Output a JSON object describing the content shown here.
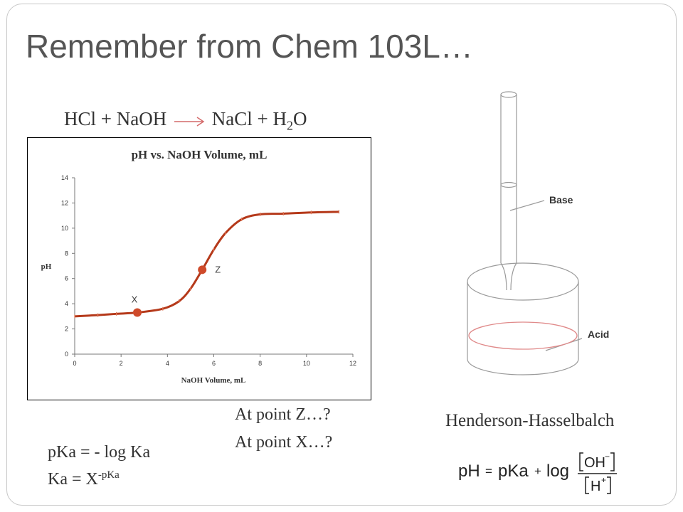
{
  "slide": {
    "title": "Remember from Chem 103L…",
    "equation": {
      "left": "HCl + NaOH",
      "right_prefix": "NaCl + H",
      "right_sub": "2",
      "right_suffix": "O"
    },
    "questions": [
      "At point Z…?",
      "At point X…?"
    ],
    "pka": {
      "line1": "pKa = - log Ka",
      "line2_base": "Ka = X",
      "line2_sup": "-pKa"
    },
    "henderson_title": "Henderson-Hasselbalch",
    "henderson_formula": {
      "lhs": "pH",
      "eq": "=",
      "pka": "pKa",
      "plus": "+",
      "log": "log",
      "numerator": "OH",
      "numerator_sup": "−",
      "denominator": "H",
      "denominator_sup": "+"
    },
    "apparatus_labels": {
      "base": "Base",
      "acid": "Acid"
    }
  },
  "chart_data": {
    "type": "line",
    "title": "pH vs. NaOH Volume, mL",
    "xlabel": "NaOH Volume, mL",
    "ylabel": "pH",
    "xlim": [
      0,
      12
    ],
    "ylim": [
      0,
      14
    ],
    "xticks": [
      0,
      2,
      4,
      6,
      8,
      10,
      12
    ],
    "yticks": [
      0,
      2,
      4,
      6,
      8,
      10,
      12,
      14
    ],
    "x": [
      0,
      1,
      1.8,
      2.7,
      3.8,
      4.5,
      5,
      5.5,
      6,
      6.5,
      7.2,
      8,
      9,
      10.2,
      11.4
    ],
    "y": [
      3.0,
      3.1,
      3.2,
      3.3,
      3.6,
      4.2,
      5.2,
      6.7,
      8.3,
      9.6,
      10.7,
      11.1,
      11.15,
      11.25,
      11.3
    ],
    "color": "#b5391a",
    "points": [
      {
        "label": "X",
        "x": 2.7,
        "y": 3.3
      },
      {
        "label": "Z",
        "x": 5.5,
        "y": 6.7
      }
    ]
  }
}
